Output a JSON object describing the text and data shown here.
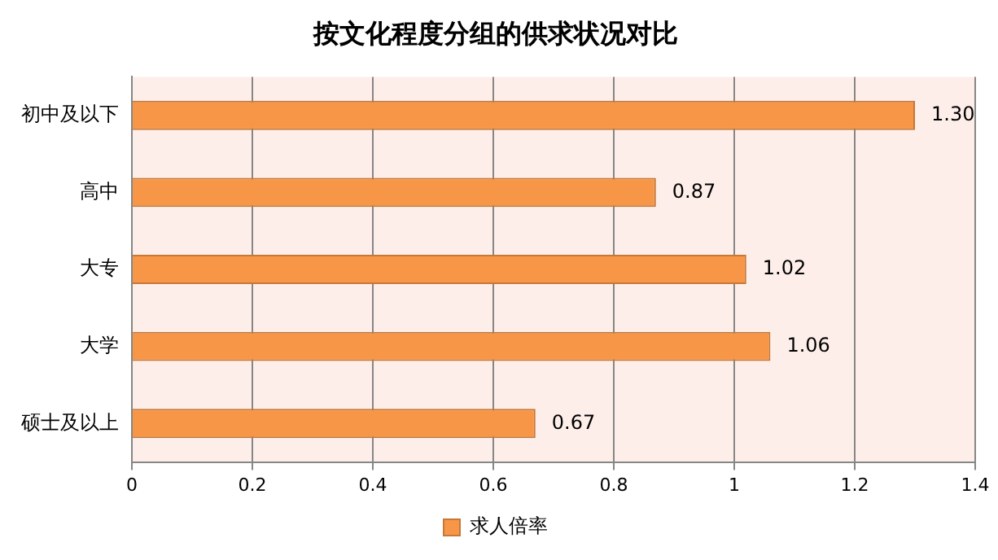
{
  "chart_data": {
    "type": "bar",
    "orientation": "horizontal",
    "title": "按文化程度分组的供求状况对比",
    "categories": [
      "初中及以下",
      "高中",
      "大专",
      "大学",
      "硕士及以上"
    ],
    "series": [
      {
        "name": "求人倍率",
        "color": "#f79646",
        "values": [
          1.3,
          0.87,
          1.02,
          1.06,
          0.67
        ],
        "value_labels": [
          "1.30",
          "0.87",
          "1.02",
          "1.06",
          "0.67"
        ]
      }
    ],
    "xlim": [
      0,
      1.4
    ],
    "xticks": [
      0,
      0.2,
      0.4,
      0.6,
      0.8,
      1,
      1.2,
      1.4
    ],
    "grid": "x",
    "legend": "bottom"
  }
}
